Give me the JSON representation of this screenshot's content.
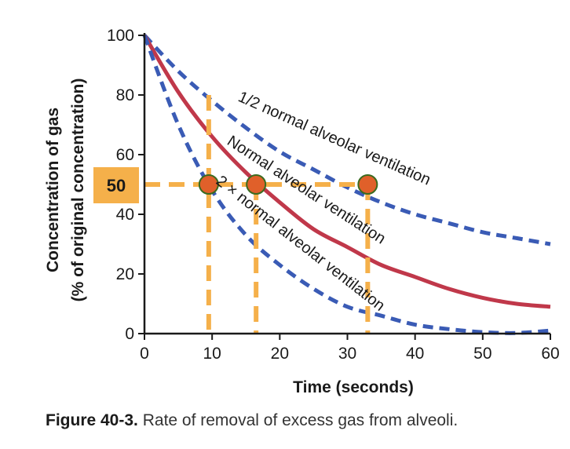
{
  "chart_data": {
    "type": "line",
    "xlabel": "Time (seconds)",
    "ylabel_line1": "Concentration of gas",
    "ylabel_line2": "(% of original concentration)",
    "xlim": [
      0,
      60
    ],
    "ylim": [
      0,
      100
    ],
    "x_ticks": [
      0,
      10,
      20,
      30,
      40,
      50,
      60
    ],
    "y_ticks": [
      0,
      20,
      40,
      60,
      80,
      100
    ],
    "grid": false,
    "series": [
      {
        "name": "1/2 normal alveolar ventilation",
        "style": "dashed",
        "color": "#3a5bb5",
        "x": [
          0,
          5,
          10,
          15,
          20,
          25,
          30,
          35,
          40,
          45,
          50,
          55,
          60
        ],
        "y": [
          100,
          88,
          78,
          69,
          61,
          55,
          49,
          44,
          40,
          37,
          34,
          32,
          30
        ]
      },
      {
        "name": "Normal alveolar ventilation",
        "style": "solid",
        "color": "#c0384a",
        "x": [
          0,
          5,
          10,
          15,
          20,
          25,
          30,
          35,
          40,
          45,
          50,
          55,
          60
        ],
        "y": [
          100,
          81,
          66,
          54,
          44,
          35,
          29,
          23,
          19,
          15,
          12,
          10,
          9
        ]
      },
      {
        "name": "2 × normal alveolar ventilation",
        "style": "dashed",
        "color": "#3a5bb5",
        "x": [
          0,
          5,
          10,
          15,
          20,
          25,
          30,
          35,
          40,
          45,
          50,
          55,
          60
        ],
        "y": [
          100,
          70,
          48,
          33,
          23,
          15,
          9,
          6,
          3,
          1.5,
          0.5,
          0.2,
          1
        ]
      }
    ],
    "annotations": {
      "reference_value": 50,
      "reference_label": "50",
      "highlight_color": "#f5b04a",
      "marker_color": "#e0602a",
      "marker_outline": "#3a6b1f",
      "marker_x": [
        9.5,
        16.5,
        33
      ]
    }
  },
  "caption": {
    "figure_number": "Figure 40-3.",
    "text": "Rate of removal of excess gas from alveoli."
  }
}
